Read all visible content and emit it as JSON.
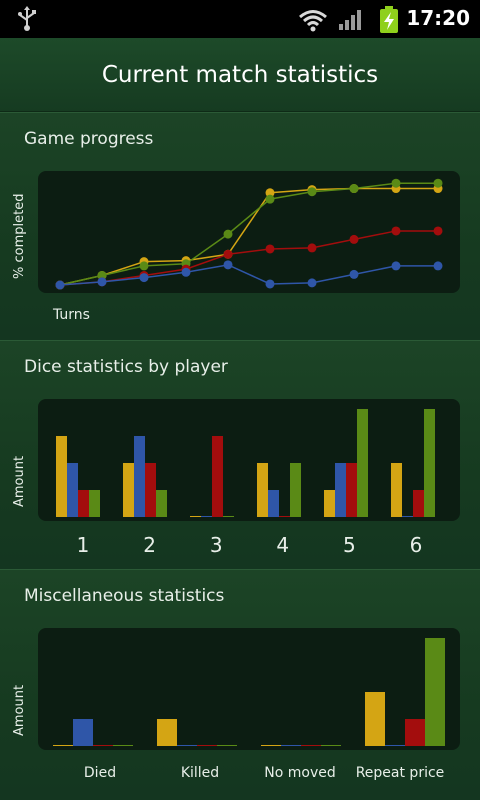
{
  "status_bar": {
    "time": "17:20",
    "icons": [
      "usb-icon",
      "wifi-icon",
      "signal-icon",
      "battery-charging-icon"
    ]
  },
  "title": "Current match statistics",
  "colors": {
    "yellow": "#d4a514",
    "blue": "#2f56a8",
    "red": "#a30d0d",
    "green": "#5a8a16"
  },
  "game_progress": {
    "title": "Game progress",
    "ylabel": "% completed",
    "xlabel": "Turns"
  },
  "dice_stats": {
    "title": "Dice statistics by player",
    "ylabel": "Amount",
    "categories": [
      "1",
      "2",
      "3",
      "4",
      "5",
      "6"
    ]
  },
  "misc_stats": {
    "title": "Miscellaneous statistics",
    "ylabel": "Amount",
    "categories": [
      "Died",
      "Killed",
      "No moved",
      "Repeat price"
    ]
  },
  "chart_data": [
    {
      "type": "line",
      "title": "Game progress",
      "ylabel": "% completed",
      "xlabel": "Turns",
      "x": [
        1,
        2,
        3,
        4,
        5,
        6,
        7,
        8,
        9,
        10
      ],
      "ylim": [
        0,
        100
      ],
      "series": [
        {
          "color": "yellow",
          "values": [
            0,
            9,
            22,
            23,
            29,
            87,
            90,
            91,
            91,
            91
          ]
        },
        {
          "color": "green",
          "values": [
            0,
            9,
            18,
            20,
            48,
            81,
            88,
            91,
            96,
            96
          ]
        },
        {
          "color": "red",
          "values": [
            0,
            3,
            9,
            15,
            29,
            34,
            35,
            43,
            51,
            51
          ]
        },
        {
          "color": "blue",
          "values": [
            0,
            3,
            7,
            12,
            19,
            1,
            2,
            10,
            18,
            18
          ]
        }
      ]
    },
    {
      "type": "bar",
      "title": "Dice statistics by player",
      "ylabel": "Amount",
      "categories": [
        "1",
        "2",
        "3",
        "4",
        "5",
        "6"
      ],
      "ylim": [
        0,
        4
      ],
      "series": [
        {
          "color": "yellow",
          "values": [
            3,
            2,
            0,
            2,
            1,
            2
          ]
        },
        {
          "color": "blue",
          "values": [
            2,
            3,
            0,
            1,
            2,
            0
          ]
        },
        {
          "color": "red",
          "values": [
            1,
            2,
            3,
            0,
            2,
            1
          ]
        },
        {
          "color": "green",
          "values": [
            1,
            1,
            0,
            2,
            4,
            4
          ]
        }
      ]
    },
    {
      "type": "bar",
      "title": "Miscellaneous statistics",
      "ylabel": "Amount",
      "categories": [
        "Died",
        "Killed",
        "No moved",
        "Repeat price"
      ],
      "ylim": [
        0,
        4
      ],
      "series": [
        {
          "color": "yellow",
          "values": [
            0,
            1,
            0,
            2
          ]
        },
        {
          "color": "blue",
          "values": [
            1,
            0,
            0,
            0
          ]
        },
        {
          "color": "red",
          "values": [
            0,
            0,
            0,
            1
          ]
        },
        {
          "color": "green",
          "values": [
            0,
            0,
            0,
            4
          ]
        }
      ]
    }
  ]
}
